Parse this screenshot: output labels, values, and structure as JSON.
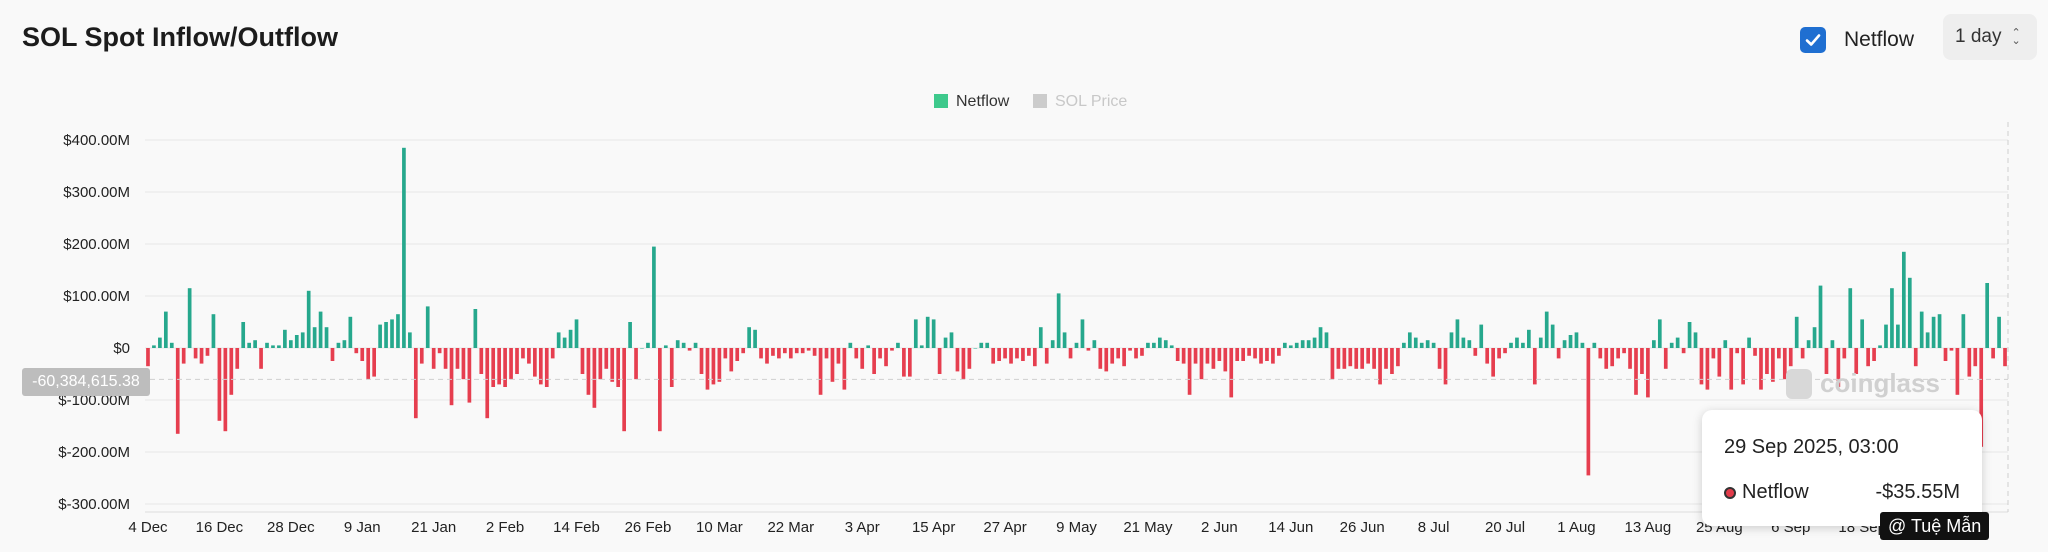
{
  "header": {
    "title": "SOL Spot Inflow/Outflow",
    "netflow_label": "Netflow",
    "interval": "1 day"
  },
  "colors": {
    "positive": "#26a88d",
    "negative": "#e63e4f",
    "accent": "#1f6fd1",
    "legend_netflow": "#3ec98c",
    "legend_price": "#cccccc"
  },
  "icons": {
    "checkbox": "check-icon",
    "select": "chevron-updown-icon",
    "watermark": "coinglass-logo-icon"
  },
  "crosshair": {
    "value_label": "-60,384,615.38",
    "value": -60384615.38
  },
  "watermark": "coinglass",
  "tooltip": {
    "date": "29 Sep 2025, 03:00",
    "series": "Netflow",
    "value": "-$35.55M"
  },
  "credit": "@ Tuệ Mẫn",
  "chart_data": {
    "type": "bar",
    "legend": [
      {
        "name": "Netflow",
        "active": true
      },
      {
        "name": "SOL Price",
        "active": false
      }
    ],
    "ylim": [
      -300,
      400
    ],
    "yunit": "M USD",
    "ytick_labels": [
      "$400.00M",
      "$300.00M",
      "$200.00M",
      "$100.00M",
      "$0",
      "$-100.00M",
      "$-200.00M",
      "$-300.00M"
    ],
    "yticks": [
      400,
      300,
      200,
      100,
      0,
      -100,
      -200,
      -300
    ],
    "xtick_labels": [
      "4 Dec",
      "16 Dec",
      "28 Dec",
      "9 Jan",
      "21 Jan",
      "2 Feb",
      "14 Feb",
      "26 Feb",
      "10 Mar",
      "22 Mar",
      "3 Apr",
      "15 Apr",
      "27 Apr",
      "9 May",
      "21 May",
      "2 Jun",
      "14 Jun",
      "26 Jun",
      "8 Jul",
      "20 Jul",
      "1 Aug",
      "13 Aug",
      "25 Aug",
      "6 Sep",
      "18 Sep"
    ],
    "xtick_index_step": 12,
    "grid": true,
    "x_start": "4 Dec",
    "series": [
      {
        "name": "Netflow",
        "values": [
          -35,
          5,
          20,
          70,
          10,
          -165,
          -30,
          115,
          -20,
          -30,
          -15,
          65,
          -140,
          -160,
          -90,
          -40,
          50,
          10,
          15,
          -40,
          10,
          5,
          5,
          35,
          15,
          25,
          30,
          110,
          40,
          70,
          40,
          -25,
          10,
          15,
          60,
          -10,
          -25,
          -60,
          -55,
          45,
          50,
          55,
          65,
          385,
          30,
          -135,
          -30,
          80,
          -40,
          -10,
          -40,
          -110,
          -40,
          -60,
          -105,
          75,
          -50,
          -135,
          -75,
          -70,
          -75,
          -60,
          -50,
          -20,
          -30,
          -55,
          -70,
          -75,
          -20,
          30,
          20,
          35,
          55,
          -50,
          -90,
          -115,
          -60,
          -40,
          -65,
          -75,
          -160,
          50,
          -60,
          0,
          10,
          195,
          -160,
          5,
          -75,
          15,
          10,
          -5,
          10,
          -50,
          -80,
          -70,
          -65,
          -20,
          -45,
          -25,
          -10,
          40,
          35,
          -20,
          -30,
          -15,
          -20,
          -10,
          -20,
          -10,
          -10,
          -5,
          -15,
          -90,
          -20,
          -65,
          -30,
          -80,
          10,
          -20,
          -40,
          5,
          -50,
          -20,
          -35,
          -5,
          10,
          -55,
          -55,
          55,
          5,
          60,
          55,
          -50,
          20,
          30,
          -45,
          -60,
          -40,
          0,
          10,
          10,
          -30,
          -25,
          -20,
          -30,
          -20,
          -25,
          -15,
          -35,
          40,
          -30,
          15,
          105,
          30,
          -20,
          10,
          55,
          -5,
          15,
          -40,
          -45,
          -30,
          -20,
          -35,
          -5,
          -20,
          -15,
          10,
          10,
          20,
          15,
          5,
          -25,
          -30,
          -90,
          -30,
          -60,
          -30,
          -40,
          -25,
          -45,
          -95,
          -25,
          -25,
          -15,
          -20,
          -30,
          -25,
          -30,
          -15,
          10,
          5,
          10,
          15,
          15,
          20,
          40,
          30,
          -60,
          -40,
          -40,
          -35,
          -40,
          -40,
          -30,
          -40,
          -70,
          -40,
          -50,
          -35,
          10,
          30,
          20,
          10,
          15,
          10,
          -40,
          -70,
          30,
          55,
          20,
          15,
          -15,
          45,
          -30,
          -55,
          -20,
          -10,
          10,
          20,
          10,
          35,
          -70,
          20,
          70,
          45,
          -20,
          15,
          25,
          30,
          10,
          -245,
          10,
          -20,
          -40,
          -35,
          -20,
          -10,
          -40,
          -90,
          -50,
          -95,
          15,
          55,
          -40,
          10,
          20,
          -10,
          50,
          30,
          -70,
          -80,
          -20,
          -55,
          15,
          -80,
          -10,
          -70,
          20,
          -15,
          -80,
          -50,
          -65,
          -20,
          -60,
          -35,
          60,
          -20,
          15,
          40,
          120,
          -50,
          15,
          -75,
          -20,
          115,
          -50,
          55,
          -35,
          -25,
          5,
          45,
          115,
          45,
          185,
          135,
          -35,
          70,
          30,
          60,
          65,
          -25,
          -5,
          -90,
          65,
          -55,
          -35,
          -190,
          125,
          -20,
          60,
          -35
        ]
      }
    ]
  }
}
